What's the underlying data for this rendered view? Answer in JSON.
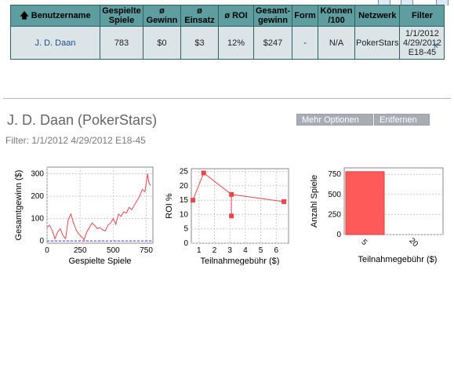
{
  "table": {
    "headers": [
      "Benutzername",
      "Gespielte Spiele",
      "ø Gewinn",
      "ø Einsatz",
      "ø ROI",
      "Gesamt-gewinn",
      "Form",
      "Können /100",
      "Netzwerk",
      "Filter"
    ],
    "row": {
      "username": "J. D. Daan",
      "games": "783",
      "avg_win": "$0",
      "avg_stake": "$3",
      "avg_roi": "12%",
      "total_win": "$247",
      "form": "-",
      "skill": "N/A",
      "network": "PokerStars",
      "filter_line1": "1/1/2012",
      "filter_line2": "4/29/2012",
      "filter_line3": "E18-45"
    },
    "remove_x": "x"
  },
  "player": {
    "title": "J. D. Daan (PokerStars)",
    "filter": "Filter: 1/1/2012 4/29/2012 E18-45",
    "more_options": "Mehr Optionen",
    "remove": "Entfernen"
  },
  "colors": {
    "header": "#5f9ea0",
    "series": "#e8474c",
    "bar": "#ff5a5a"
  },
  "chart_data": [
    {
      "type": "line",
      "xlabel": "Gespielte Spiele",
      "ylabel": "Gesamtgewinn ($)",
      "xticks": [
        "0",
        "250",
        "500",
        "750"
      ],
      "yticks": [
        "0",
        "100",
        "200",
        "300"
      ],
      "xlim": [
        0,
        800
      ],
      "ylim": [
        -10,
        330
      ],
      "x": [
        0,
        20,
        40,
        60,
        80,
        100,
        120,
        140,
        160,
        180,
        200,
        220,
        240,
        260,
        280,
        300,
        320,
        340,
        360,
        380,
        400,
        420,
        440,
        460,
        480,
        500,
        520,
        540,
        560,
        580,
        600,
        620,
        640,
        660,
        680,
        700,
        720,
        740,
        760,
        770,
        783
      ],
      "y": [
        60,
        70,
        45,
        10,
        40,
        55,
        25,
        10,
        95,
        120,
        80,
        50,
        30,
        20,
        5,
        40,
        60,
        80,
        70,
        55,
        60,
        50,
        45,
        70,
        80,
        100,
        75,
        120,
        110,
        130,
        125,
        150,
        140,
        160,
        180,
        200,
        230,
        220,
        300,
        260,
        247
      ]
    },
    {
      "type": "scatter",
      "xlabel": "Teilnahmegebühr ($)",
      "ylabel": "ROI %",
      "xticks": [
        "1",
        "2",
        "3",
        "4",
        "5",
        "6"
      ],
      "yticks": [
        "0",
        "5",
        "10",
        "15",
        "20",
        "25"
      ],
      "xlim": [
        0.5,
        6.8
      ],
      "ylim": [
        0,
        26
      ],
      "x": [
        0.6,
        1.3,
        3.1,
        3.1,
        6.5
      ],
      "y": [
        15,
        24.5,
        17,
        9.5,
        14.5
      ]
    },
    {
      "type": "bar",
      "xlabel": "Teilnahmegebühr ($)",
      "ylabel": "Anzahl Spiele",
      "categories": [
        "5",
        "20"
      ],
      "values": [
        783,
        0
      ],
      "yticks": [
        "0",
        "250",
        "500",
        "750"
      ],
      "ylim": [
        0,
        830
      ]
    }
  ]
}
